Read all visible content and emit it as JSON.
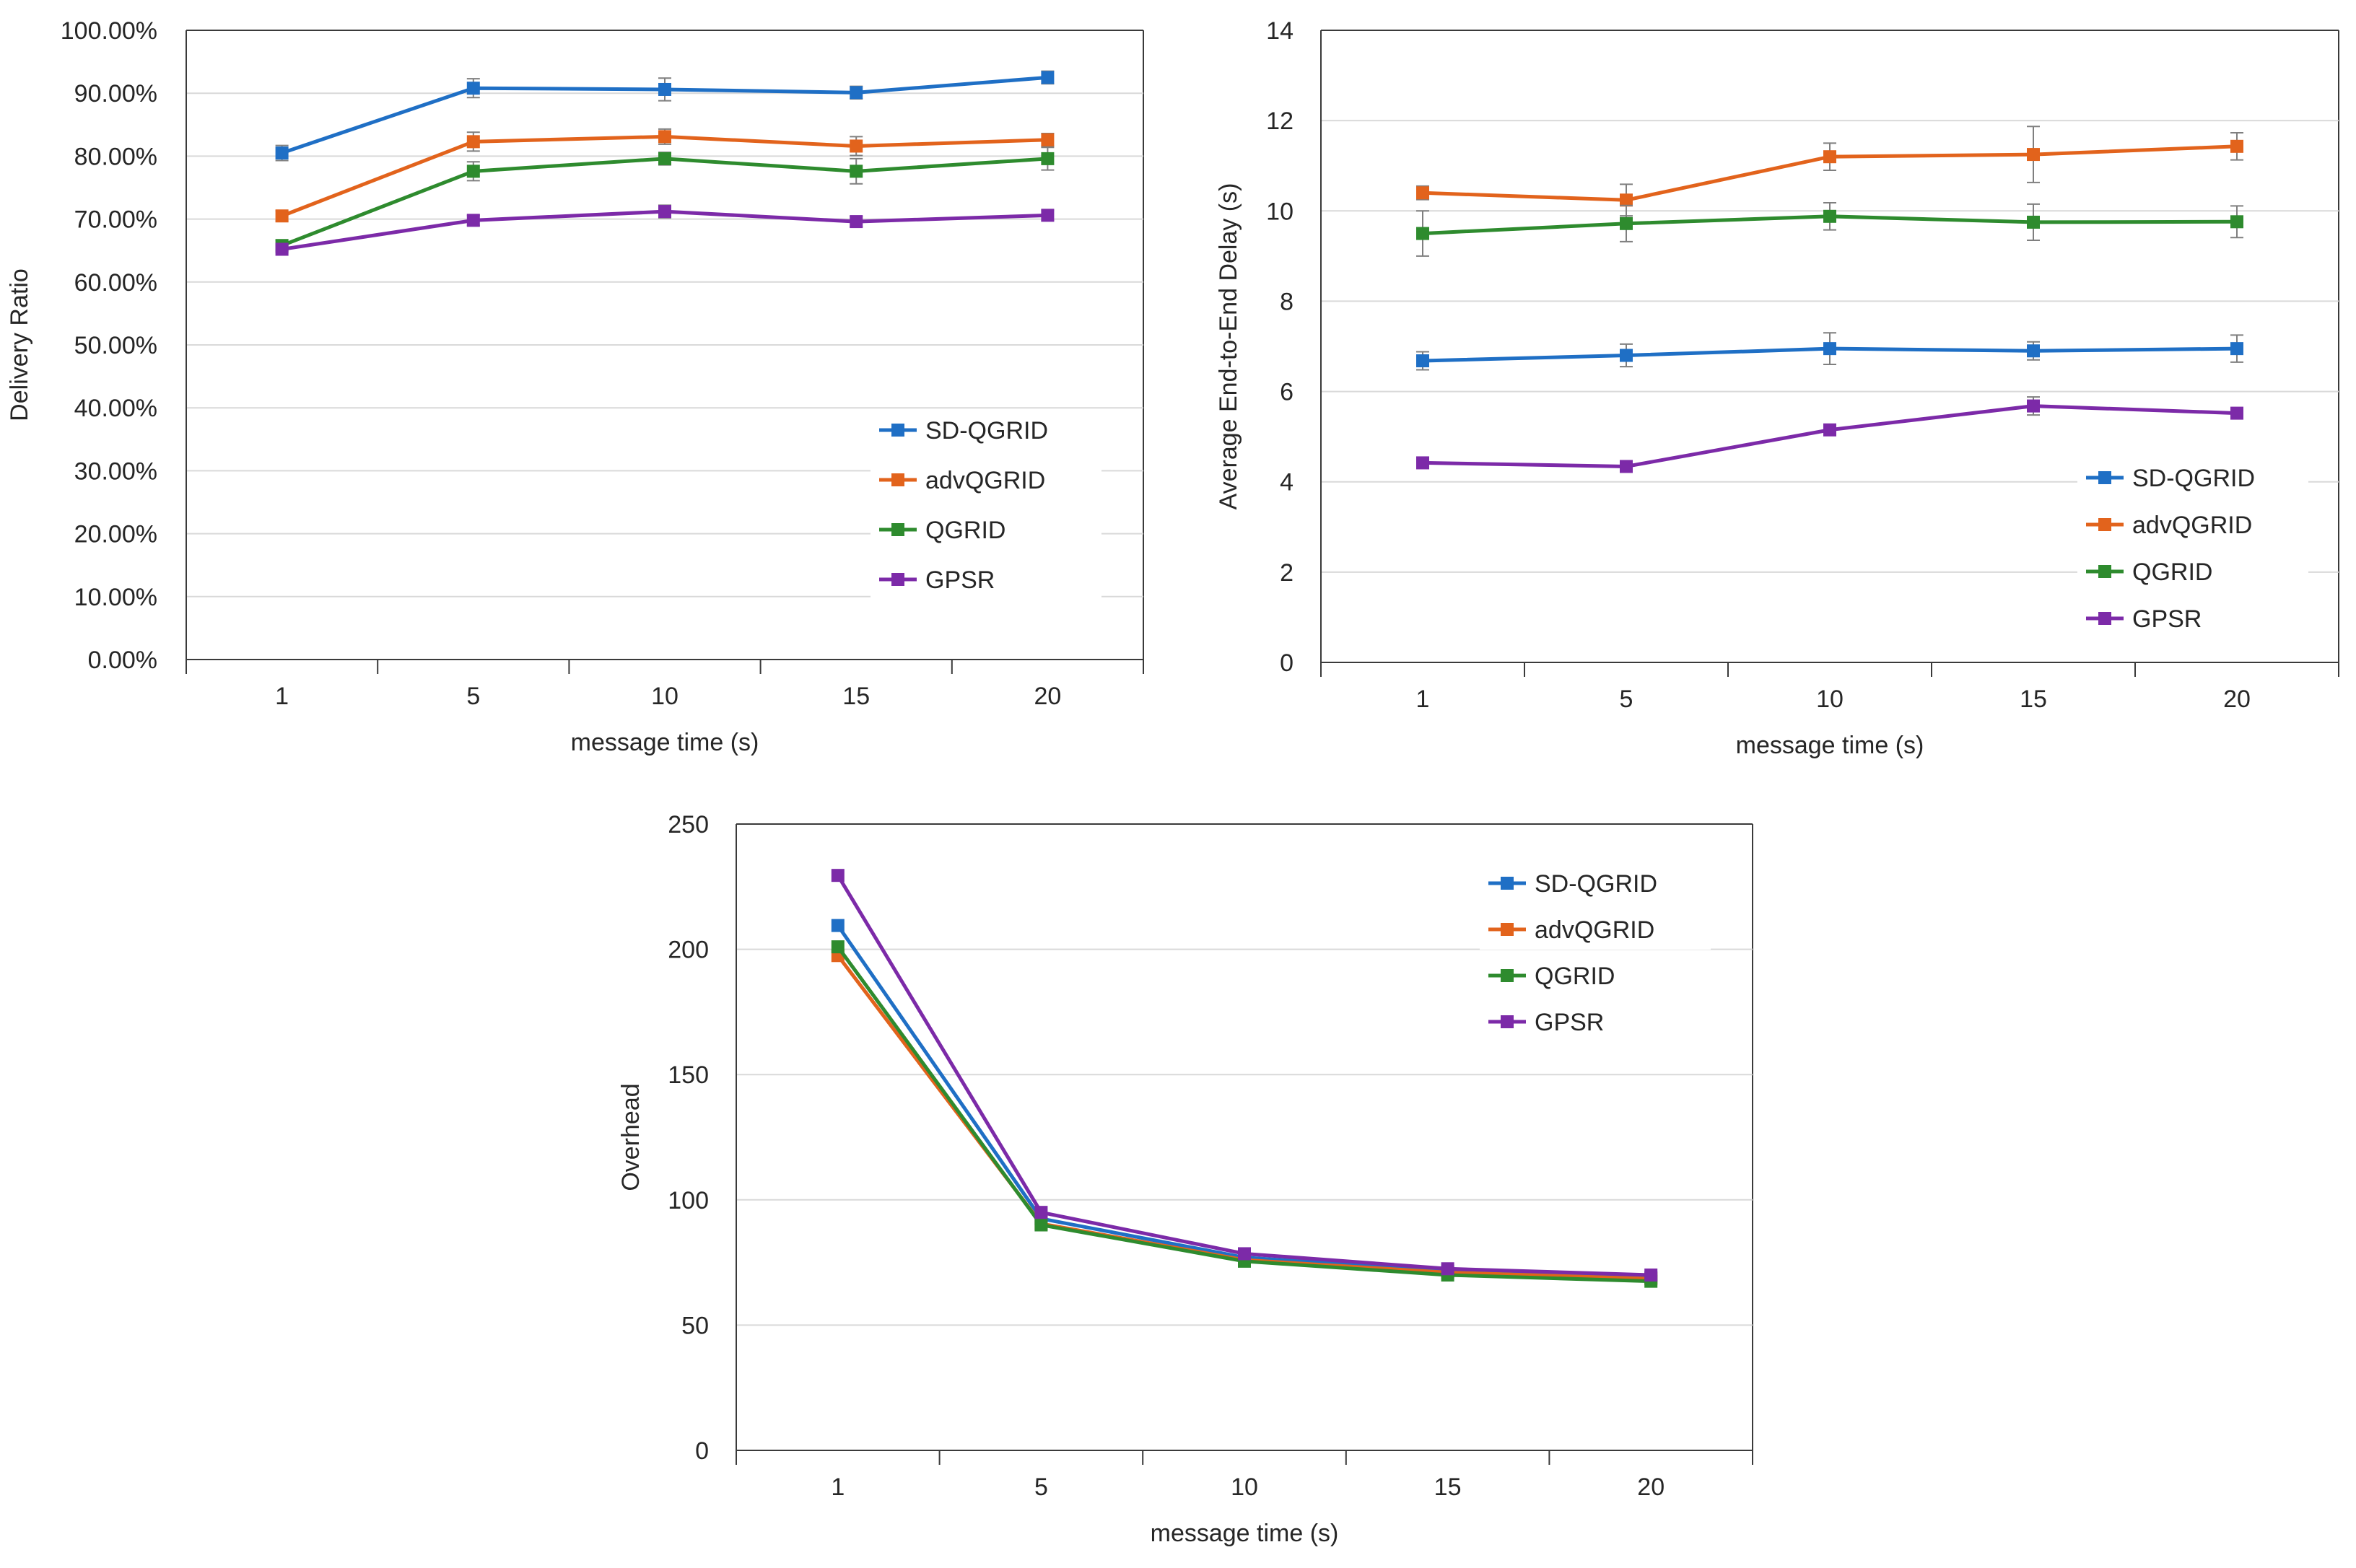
{
  "chart_data": [
    {
      "id": "delivery",
      "type": "line",
      "categories": [
        "1",
        "5",
        "10",
        "15",
        "20"
      ],
      "xlabel": "message time (s)",
      "ylabel": "Delivery Ratio",
      "ylim": [
        0,
        1.0
      ],
      "yticks": [
        0,
        0.1,
        0.2,
        0.3,
        0.4,
        0.5,
        0.6,
        0.7,
        0.8,
        0.9,
        1.0
      ],
      "ytick_labels": [
        "0.00%",
        "10.00%",
        "20.00%",
        "30.00%",
        "40.00%",
        "50.00%",
        "60.00%",
        "70.00%",
        "80.00%",
        "90.00%",
        "100.00%"
      ],
      "grid": true,
      "legend_position": "right-bottom",
      "series": [
        {
          "name": "SD-QGRID",
          "color": "#1f6fc5",
          "values": [
            0.805,
            0.908,
            0.906,
            0.901,
            0.925
          ],
          "errors": [
            0.012,
            0.015,
            0.018,
            0.01,
            0.01
          ]
        },
        {
          "name": "advQGRID",
          "color": "#e2631c",
          "values": [
            0.705,
            0.823,
            0.831,
            0.816,
            0.826
          ],
          "errors": [
            0.008,
            0.015,
            0.012,
            0.015,
            0.01
          ]
        },
        {
          "name": "QGRID",
          "color": "#2e8b2e",
          "values": [
            0.658,
            0.776,
            0.796,
            0.776,
            0.796
          ],
          "errors": [
            0.008,
            0.015,
            0.01,
            0.02,
            0.018
          ]
        },
        {
          "name": "GPSR",
          "color": "#7c2aa8",
          "values": [
            0.652,
            0.698,
            0.712,
            0.696,
            0.706
          ],
          "errors": [
            0.005,
            0.008,
            0.01,
            0.008,
            0.008
          ]
        }
      ]
    },
    {
      "id": "delay",
      "type": "line",
      "categories": [
        "1",
        "5",
        "10",
        "15",
        "20"
      ],
      "xlabel": "message time (s)",
      "ylabel": "Average End-to-End Delay (s)",
      "ylim": [
        0,
        14
      ],
      "yticks": [
        0,
        2,
        4,
        6,
        8,
        10,
        12,
        14
      ],
      "ytick_labels": [
        "0",
        "2",
        "4",
        "6",
        "8",
        "10",
        "12",
        "14"
      ],
      "grid": true,
      "legend_position": "right-bottom",
      "series": [
        {
          "name": "SD-QGRID",
          "color": "#1f6fc5",
          "values": [
            6.68,
            6.8,
            6.95,
            6.9,
            6.95
          ],
          "errors": [
            0.2,
            0.25,
            0.35,
            0.2,
            0.3
          ]
        },
        {
          "name": "advQGRID",
          "color": "#e2631c",
          "values": [
            10.4,
            10.24,
            11.2,
            11.25,
            11.43
          ],
          "errors": [
            0.15,
            0.35,
            0.3,
            0.62,
            0.3
          ]
        },
        {
          "name": "QGRID",
          "color": "#2e8b2e",
          "values": [
            9.5,
            9.72,
            9.88,
            9.75,
            9.76
          ],
          "errors": [
            0.5,
            0.4,
            0.3,
            0.4,
            0.35
          ]
        },
        {
          "name": "GPSR",
          "color": "#7c2aa8",
          "values": [
            4.42,
            4.34,
            5.15,
            5.68,
            5.52
          ],
          "errors": [
            0.05,
            0.05,
            0.1,
            0.2,
            0.1
          ]
        }
      ]
    },
    {
      "id": "overhead",
      "type": "line",
      "categories": [
        "1",
        "5",
        "10",
        "15",
        "20"
      ],
      "xlabel": "message time (s)",
      "ylabel": "Overhead",
      "ylim": [
        0,
        250
      ],
      "yticks": [
        0,
        50,
        100,
        150,
        200,
        250
      ],
      "ytick_labels": [
        "0",
        "50",
        "100",
        "150",
        "200",
        "250"
      ],
      "grid": true,
      "legend_position": "top-right",
      "series": [
        {
          "name": "SD-QGRID",
          "color": "#1f6fc5",
          "values": [
            209.5,
            92.5,
            77,
            71.5,
            69
          ]
        },
        {
          "name": "advQGRID",
          "color": "#e2631c",
          "values": [
            197.5,
            90.5,
            76,
            71,
            68.5
          ]
        },
        {
          "name": "QGRID",
          "color": "#2e8b2e",
          "values": [
            201,
            90,
            75.5,
            70,
            67.5
          ]
        },
        {
          "name": "GPSR",
          "color": "#7c2aa8",
          "values": [
            229.5,
            95,
            78.5,
            72.5,
            70
          ]
        }
      ]
    }
  ]
}
